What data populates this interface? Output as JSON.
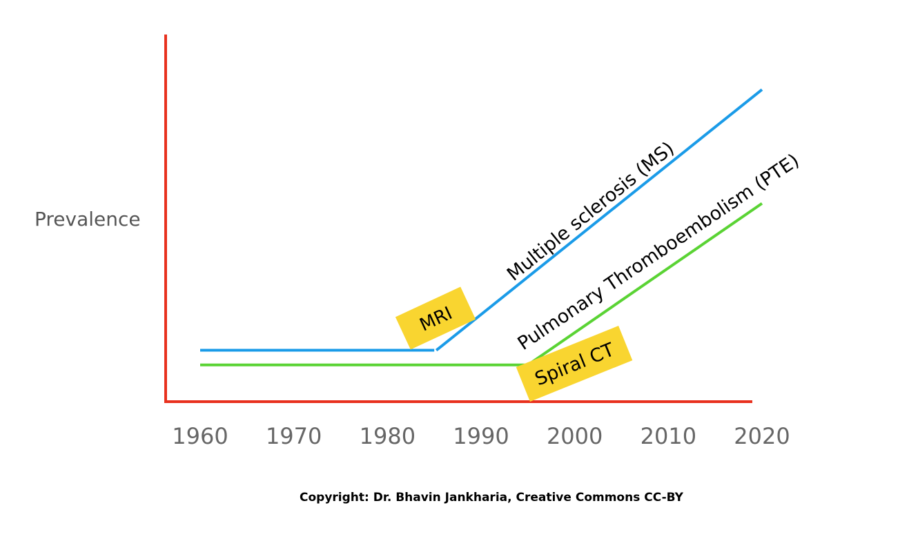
{
  "chart_data": {
    "type": "line",
    "title": "",
    "xlabel": "",
    "ylabel": "Prevalence",
    "x_ticks": [
      "1960",
      "1970",
      "1980",
      "1990",
      "2000",
      "2010",
      "2020"
    ],
    "xlim": [
      1960,
      2020
    ],
    "ylim": [
      0,
      100
    ],
    "grid": false,
    "series": [
      {
        "name": "Multiple sclerosis (MS)",
        "color": "#1a9be8",
        "points": [
          [
            1960,
            14
          ],
          [
            1985,
            14
          ],
          [
            2020,
            85
          ]
        ]
      },
      {
        "name": "Pulmonary Thromboembolism (PTE)",
        "color": "#5ad334",
        "points": [
          [
            1960,
            10
          ],
          [
            1995,
            10
          ],
          [
            2020,
            54
          ]
        ]
      }
    ],
    "annotations": [
      {
        "text": "MRI",
        "x": 1983,
        "color": "#f9d530"
      },
      {
        "text": "Spiral CT",
        "x": 1997,
        "color": "#f9d530"
      }
    ],
    "axis_color": "#e8311e",
    "footer": "Copyright: Dr. Bhavin Jankharia, Creative Commons CC-BY"
  }
}
